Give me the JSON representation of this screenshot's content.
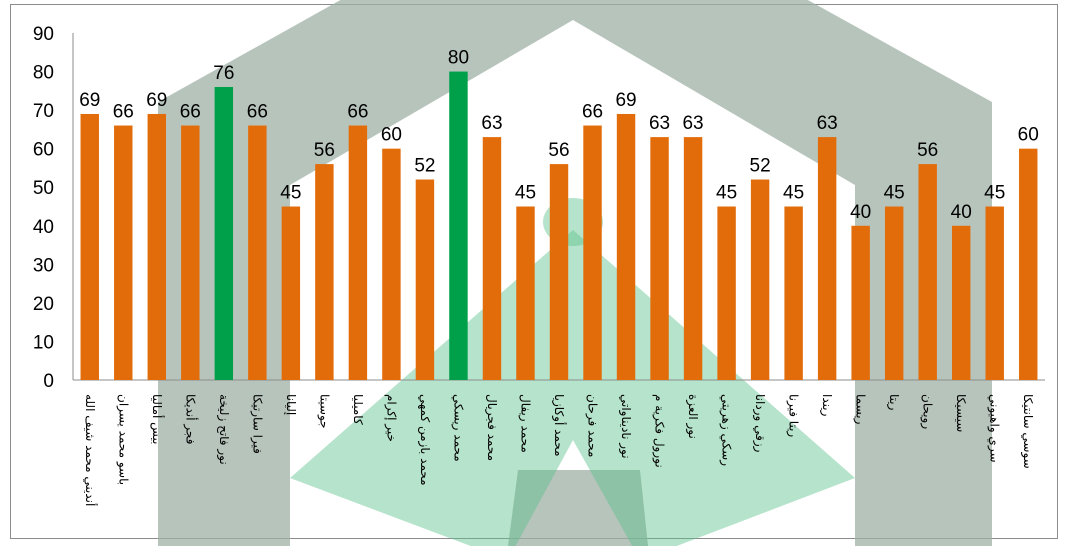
{
  "chart_data": {
    "type": "bar",
    "title": "",
    "xlabel": "",
    "ylabel": "",
    "ylim": [
      0,
      90
    ],
    "yticks": [
      0,
      10,
      20,
      30,
      40,
      50,
      60,
      70,
      80,
      90
    ],
    "grid": false,
    "legend": "none",
    "colors": {
      "default": "#e36c0a",
      "highlight": "#00a04a"
    },
    "highlight_categories": [
      "نور فاتح زليخة",
      "محمد ريسكي"
    ],
    "categories": [
      "أنديني محمد شيف الله",
      "باسو محمد يسران",
      "بيس أماليا",
      "فجر أنديكا",
      "نور فاتح زليخة",
      "فيرا سارتيكا",
      "إليانا",
      "جوسيتا",
      "كاميليا",
      "خير إكرام",
      "محمد بازمن كمهي",
      "محمد ريسكي",
      "محمد فجريال",
      "محمد ريفال",
      "محمد أوكازيا",
      "محمد فرحان",
      "نور ناديناواتي",
      "نورول فكرية م",
      "نور العزة",
      "رسكي زهريتي",
      "رزقي وردانا",
      "ريتا فيرنا",
      "ريندا",
      "ريسما",
      "ريتا",
      "رويحان",
      "سيسيكا",
      "سري واهيوني",
      "سوسي سانتيكا"
    ],
    "values": [
      69,
      66,
      69,
      66,
      76,
      66,
      45,
      56,
      66,
      60,
      52,
      80,
      63,
      45,
      56,
      66,
      69,
      63,
      63,
      45,
      52,
      45,
      63,
      40,
      45,
      56,
      40,
      45,
      60
    ],
    "data_labels": [
      "69",
      "66",
      "69",
      "66",
      "76",
      "66",
      "45",
      "56",
      "66",
      "60",
      "52",
      "80",
      "63",
      "45",
      "56",
      "66",
      "69",
      "63",
      "63",
      "45",
      "52",
      "45",
      "63",
      "40",
      "45",
      "56",
      "40",
      "45",
      "60"
    ]
  }
}
